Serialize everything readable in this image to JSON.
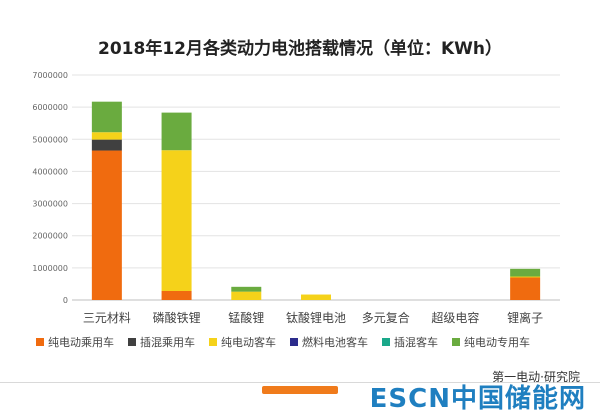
{
  "chart_data": {
    "type": "bar",
    "stacked": true,
    "title": "2018年12月各类动力电池搭载情况（单位：KWh）",
    "categories": [
      "三元材料",
      "磷酸铁锂",
      "锰酸锂",
      "钛酸锂电池",
      "多元复合",
      "超级电容",
      "锂离子"
    ],
    "ylim": [
      0,
      7000000
    ],
    "yticks": [
      0,
      1000000,
      2000000,
      3000000,
      4000000,
      5000000,
      6000000,
      7000000
    ],
    "ytick_labels": [
      "0",
      "1000000",
      "2000000",
      "3000000",
      "4000000",
      "5000000",
      "6000000",
      "7000000"
    ],
    "grid": true,
    "legend_position": "bottom",
    "series": [
      {
        "name": "纯电动乘用车",
        "color": "#f06b0f",
        "values": [
          4650000,
          280000,
          0,
          0,
          0,
          0,
          700000
        ]
      },
      {
        "name": "插混乘用车",
        "color": "#404040",
        "values": [
          340000,
          0,
          0,
          0,
          0,
          0,
          0
        ]
      },
      {
        "name": "纯电动客车",
        "color": "#f5d21a",
        "values": [
          230000,
          4380000,
          260000,
          170000,
          0,
          0,
          30000
        ]
      },
      {
        "name": "燃料电池客车",
        "color": "#2c2c8c",
        "values": [
          0,
          0,
          0,
          0,
          0,
          0,
          0
        ]
      },
      {
        "name": "插混客车",
        "color": "#1aa88a",
        "values": [
          0,
          0,
          0,
          0,
          0,
          0,
          0
        ]
      },
      {
        "name": "纯电动专用车",
        "color": "#6aab3f",
        "values": [
          950000,
          1170000,
          150000,
          0,
          0,
          0,
          240000
        ]
      }
    ]
  },
  "watermark": {
    "top": "第一电动·研究院",
    "main": "ESCN中国储能网"
  }
}
